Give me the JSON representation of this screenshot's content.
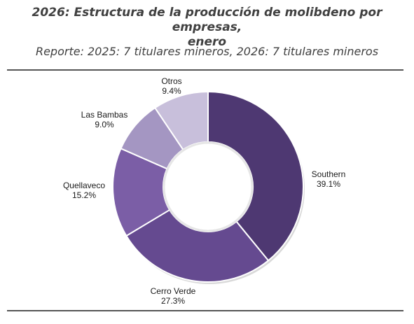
{
  "header": {
    "title_line1": "2026: Estructura de la producción de molibdeno por empresas,",
    "title_line2": "enero",
    "subtitle": "Reporte: 2025: 7 titulares mineros, 2026: 7 titulares mineros"
  },
  "chart_data": {
    "type": "pie",
    "variant": "donut",
    "title": "2026: Estructura de la producción de molibdeno por empresas, enero",
    "subtitle": "Reporte: 2025: 7 titulares mineros, 2026: 7 titulares mineros",
    "unit": "%",
    "start_angle": "top (12 o'clock), clockwise",
    "slices": [
      {
        "name": "Southern",
        "value": 39.1,
        "label": "39.1%",
        "color": "#4e3872"
      },
      {
        "name": "Cerro Verde",
        "value": 27.3,
        "label": "27.3%",
        "color": "#654a90"
      },
      {
        "name": "Quellaveco",
        "value": 15.2,
        "label": "15.2%",
        "color": "#7b5ea6"
      },
      {
        "name": "Las Bambas",
        "value": 9.0,
        "label": "9.0%",
        "color": "#a496c2"
      },
      {
        "name": "Otros",
        "value": 9.4,
        "label": "9.4%",
        "color": "#c8bfdb"
      }
    ]
  }
}
